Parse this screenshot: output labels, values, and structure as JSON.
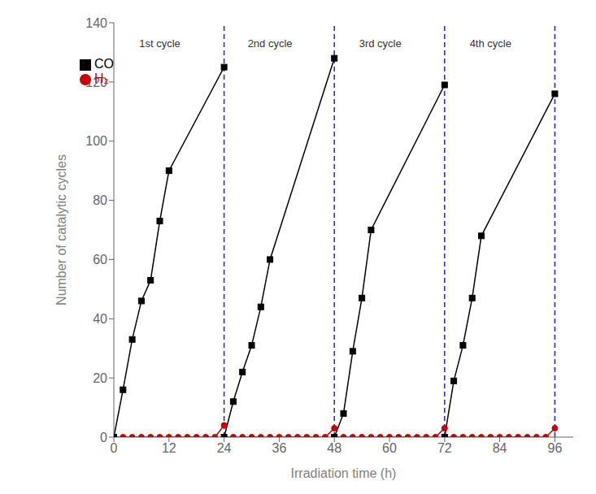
{
  "chart_data": {
    "type": "line",
    "xlabel": "Irradiation time (h)",
    "ylabel": "Number of catalytic cycles",
    "xlim": [
      0,
      100
    ],
    "ylim": [
      0,
      140
    ],
    "xticks": [
      0,
      12,
      24,
      36,
      48,
      60,
      72,
      84,
      96
    ],
    "yticks": [
      0,
      20,
      40,
      60,
      80,
      100,
      120,
      140
    ],
    "grid": false,
    "legend": "upper left",
    "series": [
      {
        "name": "H₂",
        "color": "#cc0000",
        "marker": "circle",
        "line_style": "solid",
        "x": [
          0,
          2,
          4,
          6,
          8,
          10,
          12,
          14,
          16,
          18,
          20,
          22,
          24,
          24,
          24,
          26,
          28,
          30,
          32,
          34,
          36,
          38,
          40,
          42,
          44,
          46,
          48,
          48,
          48,
          50,
          52,
          54,
          56,
          58,
          60,
          62,
          64,
          66,
          68,
          70,
          72,
          72,
          72,
          74,
          76,
          78,
          80,
          82,
          84,
          86,
          88,
          90,
          92,
          94,
          96
        ],
        "values": [
          0,
          0,
          0,
          0,
          0,
          0,
          0,
          0,
          0,
          0,
          0,
          0,
          4,
          null,
          0,
          0,
          0,
          0,
          0,
          0,
          0,
          0,
          0,
          0,
          0,
          0,
          3,
          null,
          0,
          0,
          0,
          0,
          0,
          0,
          0,
          0,
          0,
          0,
          0,
          0,
          3,
          null,
          0,
          0,
          0,
          0,
          0,
          0,
          0,
          0,
          0,
          0,
          0,
          0,
          3
        ]
      },
      {
        "name": "CO",
        "color": "#000000",
        "marker": "square",
        "line_style": "solid",
        "x": [
          0,
          2,
          4,
          6,
          8,
          10,
          12,
          24,
          24,
          24,
          26,
          28,
          30,
          32,
          34,
          48,
          48,
          48,
          50,
          52,
          54,
          56,
          72,
          72,
          72,
          74,
          76,
          78,
          80,
          96
        ],
        "values": [
          0,
          16,
          33,
          46,
          53,
          73,
          90,
          125,
          null,
          0,
          12,
          22,
          31,
          44,
          60,
          128,
          null,
          0,
          8,
          29,
          47,
          70,
          119,
          null,
          0,
          19,
          31,
          47,
          68,
          116
        ]
      }
    ],
    "reference_lines": {
      "x": [
        24,
        48,
        72,
        96
      ],
      "color": "#2222cc",
      "line_style": "dashed"
    },
    "annotations": [
      {
        "text": "1st cycle",
        "x": 10,
        "y": 133
      },
      {
        "text": "2nd cycle",
        "x": 34,
        "y": 133
      },
      {
        "text": "3rd cycle",
        "x": 58,
        "y": 133
      },
      {
        "text": "4th cycle",
        "x": 82,
        "y": 133
      }
    ]
  }
}
